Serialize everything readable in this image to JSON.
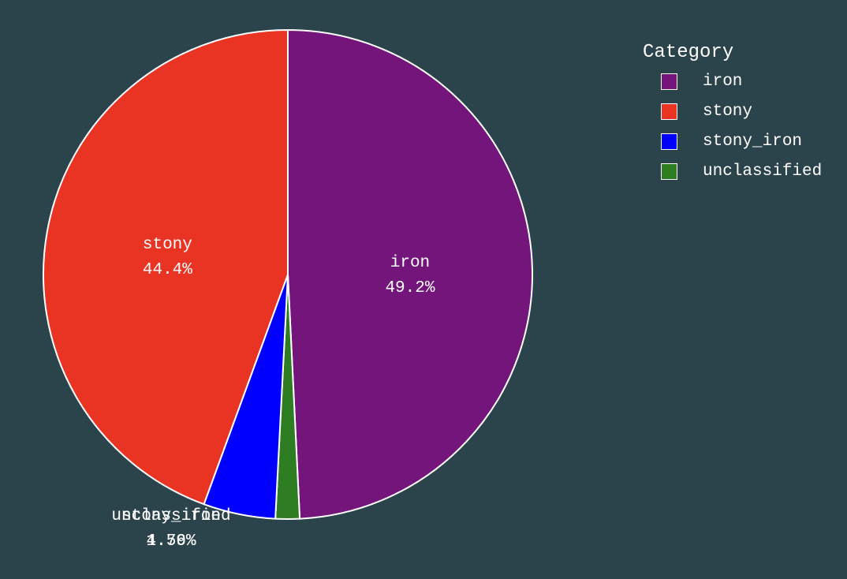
{
  "colors": {
    "background": "#2b434b",
    "slice_border": "#ffffff",
    "text": "#ffffff"
  },
  "chart_data": {
    "type": "pie",
    "title": "",
    "legend_title": "Category",
    "legend_position": "top-right",
    "direction": "clockwise",
    "start_angle": "top",
    "slices": [
      {
        "label": "iron",
        "percent_text": "49.2%",
        "value": 49.2,
        "color": "#74157b"
      },
      {
        "label": "unclassified",
        "percent_text": "1.59%",
        "value": 1.59,
        "color": "#2e7d22"
      },
      {
        "label": "stony_iron",
        "percent_text": "4.76%",
        "value": 4.76,
        "color": "#0000ff"
      },
      {
        "label": "stony",
        "percent_text": "44.4%",
        "value": 44.4,
        "color": "#e93424"
      }
    ],
    "legend_items": [
      {
        "label": "iron",
        "color": "#74157b"
      },
      {
        "label": "stony",
        "color": "#e93424"
      },
      {
        "label": "stony_iron",
        "color": "#0000ff"
      },
      {
        "label": "unclassified",
        "color": "#2e7d22"
      }
    ]
  }
}
